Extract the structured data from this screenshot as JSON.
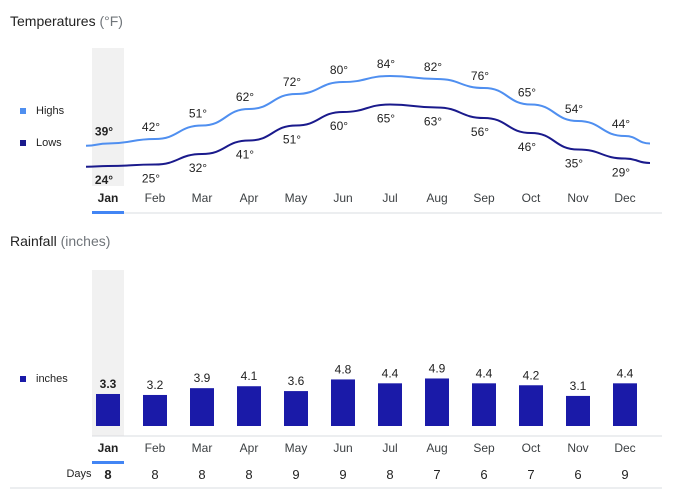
{
  "temperatures": {
    "title": "Temperatures",
    "unit": "(°F)",
    "legend": {
      "highs": "Highs",
      "lows": "Lows"
    }
  },
  "rainfall": {
    "title": "Rainfall",
    "unit": "(inches)",
    "legend": {
      "inches": "inches"
    },
    "days_label": "Days"
  },
  "colors": {
    "highs": "#4f8ff0",
    "lows": "#1a1a8c",
    "bars": "#1a1aa8",
    "selected": "#4285f4"
  },
  "selected_month": "Jan",
  "chart_data": [
    {
      "type": "line",
      "title": "Temperatures (°F)",
      "categories": [
        "Jan",
        "Feb",
        "Mar",
        "Apr",
        "May",
        "Jun",
        "Jul",
        "Aug",
        "Sep",
        "Oct",
        "Nov",
        "Dec"
      ],
      "series": [
        {
          "name": "Highs",
          "values": [
            39,
            42,
            51,
            62,
            72,
            80,
            84,
            82,
            76,
            65,
            54,
            44
          ],
          "labels": [
            "39°",
            "42°",
            "51°",
            "62°",
            "72°",
            "80°",
            "84°",
            "82°",
            "76°",
            "65°",
            "54°",
            "44°"
          ]
        },
        {
          "name": "Lows",
          "values": [
            24,
            25,
            32,
            41,
            51,
            60,
            65,
            63,
            56,
            46,
            35,
            29
          ],
          "labels": [
            "24°",
            "25°",
            "32°",
            "41°",
            "51°",
            "60°",
            "65°",
            "63°",
            "56°",
            "46°",
            "35°",
            "29°"
          ]
        }
      ]
    },
    {
      "type": "bar",
      "title": "Rainfall (inches)",
      "categories": [
        "Jan",
        "Feb",
        "Mar",
        "Apr",
        "May",
        "Jun",
        "Jul",
        "Aug",
        "Sep",
        "Oct",
        "Nov",
        "Dec"
      ],
      "series": [
        {
          "name": "inches",
          "values": [
            3.3,
            3.2,
            3.9,
            4.1,
            3.6,
            4.8,
            4.4,
            4.9,
            4.4,
            4.2,
            3.1,
            4.4
          ],
          "labels": [
            "3.3",
            "3.2",
            "3.9",
            "4.1",
            "3.6",
            "4.8",
            "4.4",
            "4.9",
            "4.4",
            "4.2",
            "3.1",
            "4.4"
          ]
        }
      ],
      "days": [
        "8",
        "8",
        "8",
        "8",
        "9",
        "9",
        "8",
        "7",
        "6",
        "7",
        "6",
        "9"
      ]
    }
  ]
}
